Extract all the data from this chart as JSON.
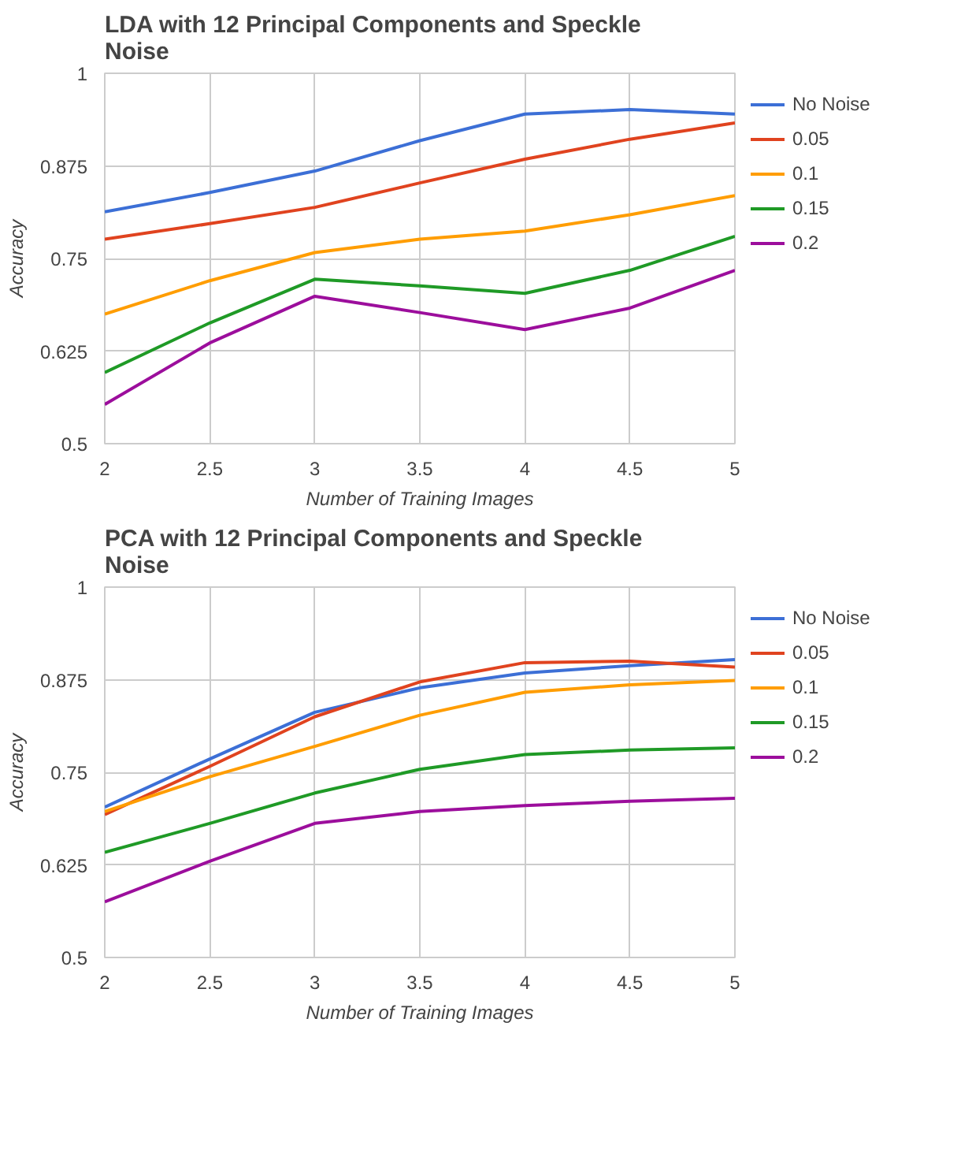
{
  "chart_data": [
    {
      "type": "line",
      "title": "LDA with 12 Principal Components and Speckle Noise",
      "xlabel": "Number of Training Images",
      "ylabel": "Accuracy",
      "x": [
        2,
        2.5,
        3,
        3.5,
        4,
        4.5,
        5
      ],
      "xlim": [
        2,
        5
      ],
      "xticks": [
        2,
        2.5,
        3,
        3.5,
        4,
        4.5,
        5
      ],
      "ylim": [
        0.5,
        1
      ],
      "yticks": [
        0.5,
        0.625,
        0.75,
        0.875,
        1
      ],
      "grid": true,
      "legend": "right",
      "marker": "none",
      "line_style": "solid",
      "series": [
        {
          "name": "No Noise",
          "color": "#3c6fd6",
          "values": [
            0.813,
            0.839,
            0.868,
            0.909,
            0.945,
            0.951,
            0.945
          ]
        },
        {
          "name": "0.05",
          "color": "#e0431f",
          "values": [
            0.776,
            0.797,
            0.819,
            0.852,
            0.884,
            0.911,
            0.933
          ]
        },
        {
          "name": "0.1",
          "color": "#ff9d00",
          "values": [
            0.675,
            0.72,
            0.758,
            0.776,
            0.787,
            0.809,
            0.835
          ]
        },
        {
          "name": "0.15",
          "color": "#1f9a26",
          "values": [
            0.596,
            0.663,
            0.722,
            0.713,
            0.703,
            0.734,
            0.78
          ]
        },
        {
          "name": "0.2",
          "color": "#9c0e9c",
          "values": [
            0.553,
            0.636,
            0.699,
            0.677,
            0.654,
            0.683,
            0.734
          ]
        }
      ]
    },
    {
      "type": "line",
      "title": "PCA with 12 Principal Components and Speckle Noise",
      "xlabel": "Number of Training Images",
      "ylabel": "Accuracy",
      "x": [
        2,
        2.5,
        3,
        3.5,
        4,
        4.5,
        5
      ],
      "xlim": [
        2,
        5
      ],
      "xticks": [
        2,
        2.5,
        3,
        3.5,
        4,
        4.5,
        5
      ],
      "ylim": [
        0.5,
        1
      ],
      "yticks": [
        0.5,
        0.625,
        0.75,
        0.875,
        1
      ],
      "grid": true,
      "legend": "right",
      "marker": "none",
      "line_style": "solid",
      "series": [
        {
          "name": "No Noise",
          "color": "#3c6fd6",
          "values": [
            0.703,
            0.768,
            0.831,
            0.864,
            0.884,
            0.894,
            0.902
          ]
        },
        {
          "name": "0.05",
          "color": "#e0431f",
          "values": [
            0.693,
            0.758,
            0.825,
            0.872,
            0.898,
            0.9,
            0.892
          ]
        },
        {
          "name": "0.1",
          "color": "#ff9d00",
          "values": [
            0.697,
            0.744,
            0.785,
            0.827,
            0.858,
            0.868,
            0.874
          ]
        },
        {
          "name": "0.15",
          "color": "#1f9a26",
          "values": [
            0.642,
            0.681,
            0.722,
            0.754,
            0.774,
            0.78,
            0.783
          ]
        },
        {
          "name": "0.2",
          "color": "#9c0e9c",
          "values": [
            0.575,
            0.63,
            0.681,
            0.697,
            0.705,
            0.711,
            0.715
          ]
        }
      ]
    }
  ]
}
